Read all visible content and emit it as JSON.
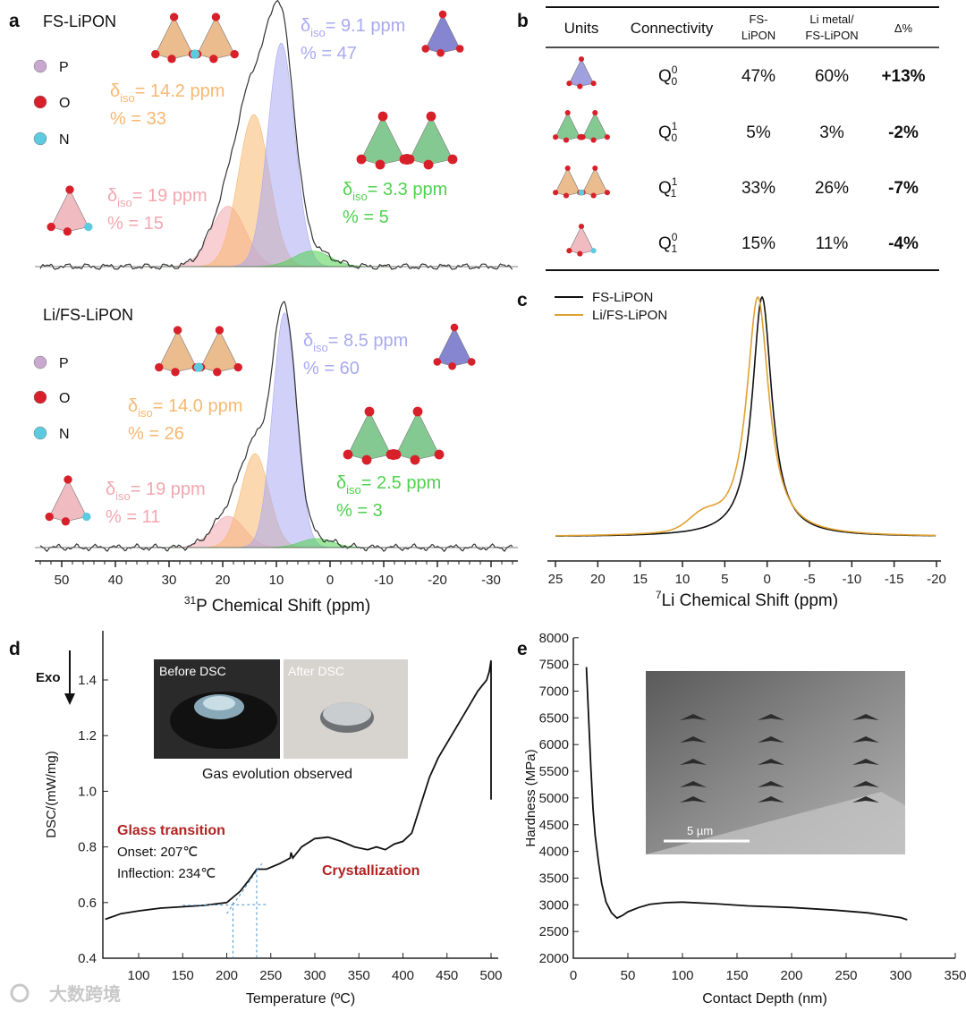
{
  "watermark": "大数跨境",
  "panel_labels": {
    "a": "a",
    "b": "b",
    "c": "c",
    "d": "d",
    "e": "e"
  },
  "atom_legend": [
    {
      "symbol": "P",
      "color": "#c9a8cf"
    },
    {
      "symbol": "O",
      "color": "#d8202a"
    },
    {
      "symbol": "N",
      "color": "#5ccbe0"
    }
  ],
  "chart_data": [
    {
      "id": "a",
      "type": "line",
      "xlabel_sup": "31",
      "xlabel": "P Chemical Shift (ppm)",
      "xlim": [
        55,
        -35
      ],
      "xticks": [
        50,
        40,
        30,
        20,
        10,
        0,
        -10,
        -20,
        -30
      ],
      "spectra": [
        {
          "title": "FS-LiPON",
          "components": [
            {
              "delta": "δ",
              "sub": "iso",
              "value": "= 19 ppm",
              "percent": "% = 15",
              "shift": 19,
              "intensity": 0.27,
              "sigma": 3.2,
              "color": "#f2a7ae"
            },
            {
              "delta": "δ",
              "sub": "iso",
              "value": "= 14.2 ppm",
              "percent": "% = 33",
              "shift": 14.2,
              "intensity": 0.68,
              "sigma": 2.9,
              "color": "#f7b870"
            },
            {
              "delta": "δ",
              "sub": "iso",
              "value": "= 9.1 ppm",
              "percent": "% = 47",
              "shift": 9.1,
              "intensity": 1.0,
              "sigma": 2.5,
              "color": "#a9a9f2"
            },
            {
              "delta": "δ",
              "sub": "iso",
              "value": "= 3.3 ppm",
              "percent": "% = 5",
              "shift": 3.3,
              "intensity": 0.07,
              "sigma": 3.4,
              "color": "#4fd14f"
            }
          ]
        },
        {
          "title": "Li/FS-LiPON",
          "components": [
            {
              "delta": "δ",
              "sub": "iso",
              "value": "= 19 ppm",
              "percent": "% = 11",
              "shift": 19,
              "intensity": 0.14,
              "sigma": 3.0,
              "color": "#f2a7ae"
            },
            {
              "delta": "δ",
              "sub": "iso",
              "value": "= 14.0 ppm",
              "percent": "% = 26",
              "shift": 14.0,
              "intensity": 0.42,
              "sigma": 2.6,
              "color": "#f7b870"
            },
            {
              "delta": "δ",
              "sub": "iso",
              "value": "= 8.5 ppm",
              "percent": "% = 60",
              "shift": 8.5,
              "intensity": 1.05,
              "sigma": 2.2,
              "color": "#a9a9f2"
            },
            {
              "delta": "δ",
              "sub": "iso",
              "value": "= 2.5 ppm",
              "percent": "% = 3",
              "shift": 2.5,
              "intensity": 0.04,
              "sigma": 3.0,
              "color": "#4fd14f"
            }
          ]
        }
      ]
    },
    {
      "id": "b",
      "type": "table",
      "headers": [
        "Units",
        "Connectivity",
        [
          "FS-",
          "LiPON"
        ],
        [
          "Li metal/",
          "FS-LiPON"
        ],
        "Δ%"
      ],
      "rows": [
        {
          "unit_color": "#8f8fd8",
          "q_sup": "0",
          "q_sub": "0",
          "fs": "47%",
          "li": "60%",
          "delta": "+13%"
        },
        {
          "unit_color": "#6fbf7f",
          "q_sup": "1",
          "q_sub": "0",
          "fs": "5%",
          "li": "3%",
          "delta": "-2%"
        },
        {
          "unit_color": "#e8b07a",
          "q_sup": "1",
          "q_sub": "1",
          "fs": "33%",
          "li": "26%",
          "delta": "-7%"
        },
        {
          "unit_color": "#eeb0b6",
          "q_sup": "0",
          "q_sub": "1",
          "fs": "15%",
          "li": "11%",
          "delta": "-4%"
        }
      ]
    },
    {
      "id": "c",
      "type": "line",
      "xlabel_sup": "7",
      "xlabel": "Li Chemical Shift (ppm)",
      "xlim": [
        25,
        -20
      ],
      "xticks": [
        25,
        20,
        15,
        10,
        5,
        0,
        -5,
        -10,
        -15,
        -20
      ],
      "series": [
        {
          "name": "FS-LiPON",
          "color": "#111111",
          "center": 0.6,
          "width": 1.4,
          "shoulder": 0
        },
        {
          "name": "Li/FS-LiPON",
          "color": "#e0a030",
          "center": 1.1,
          "width": 1.6,
          "shoulder": 0.06
        }
      ]
    },
    {
      "id": "d",
      "type": "line",
      "ylabel": "DSC/(mW/mg)",
      "xlabel": "Temperature (ºC)",
      "xlim": [
        62,
        512
      ],
      "ylim": [
        0.4,
        1.5
      ],
      "xticks": [
        100,
        150,
        200,
        250,
        300,
        350,
        400,
        450,
        500
      ],
      "yticks": [
        0.4,
        0.6,
        0.8,
        1.0,
        1.2,
        1.4
      ],
      "exo_label": "Exo",
      "photos": [
        "Before DSC",
        "After DSC"
      ],
      "photo_caption": "Gas evolution observed",
      "glass_transition": "Glass transition",
      "onset": "Onset: 207℃",
      "inflection": "Inflection: 234℃",
      "crystallization": "Crystallization",
      "onset_temp": 207,
      "inflection_temp": 234,
      "x": [
        62,
        80,
        100,
        125,
        150,
        175,
        200,
        215,
        225,
        234,
        245,
        260,
        272,
        273,
        275,
        285,
        300,
        315,
        330,
        345,
        360,
        370,
        380,
        390,
        400,
        410,
        420,
        430,
        440,
        455,
        470,
        485,
        495,
        498,
        500,
        500
      ],
      "y": [
        0.54,
        0.56,
        0.57,
        0.58,
        0.585,
        0.59,
        0.6,
        0.64,
        0.68,
        0.72,
        0.72,
        0.74,
        0.76,
        0.78,
        0.76,
        0.8,
        0.83,
        0.835,
        0.82,
        0.8,
        0.79,
        0.8,
        0.79,
        0.81,
        0.82,
        0.85,
        0.95,
        1.05,
        1.12,
        1.2,
        1.28,
        1.36,
        1.4,
        1.43,
        1.47,
        0.97
      ]
    },
    {
      "id": "e",
      "type": "line",
      "ylabel": "Hardness (MPa)",
      "xlabel": "Contact Depth (nm)",
      "xlim": [
        0,
        350
      ],
      "ylim": [
        2000,
        8000
      ],
      "xticks": [
        0,
        50,
        100,
        150,
        200,
        250,
        300,
        350
      ],
      "yticks": [
        2000,
        2500,
        3000,
        3500,
        4000,
        4500,
        5000,
        5500,
        6000,
        6500,
        7000,
        7500,
        8000
      ],
      "scale_bar": "5 µm",
      "x": [
        12,
        14,
        16,
        18,
        20,
        23,
        26,
        30,
        35,
        40,
        45,
        50,
        60,
        70,
        85,
        100,
        130,
        160,
        200,
        240,
        270,
        300,
        306
      ],
      "y": [
        7450,
        6500,
        5600,
        4800,
        4300,
        3800,
        3400,
        3050,
        2850,
        2750,
        2800,
        2870,
        2950,
        3010,
        3040,
        3050,
        3020,
        2980,
        2950,
        2900,
        2850,
        2760,
        2720
      ]
    }
  ]
}
